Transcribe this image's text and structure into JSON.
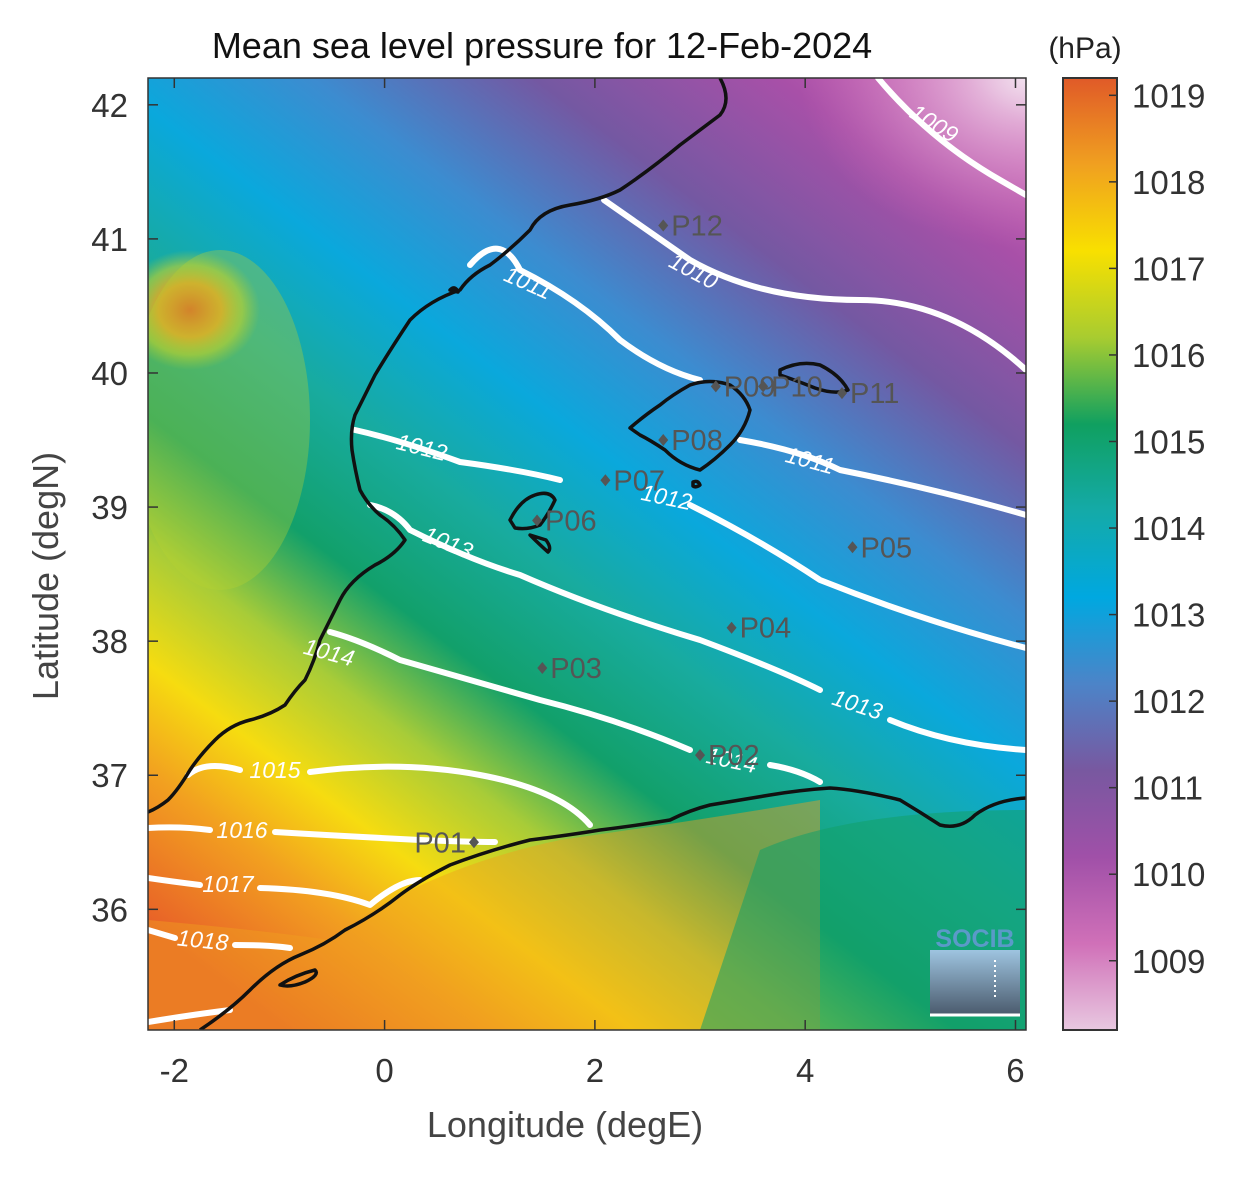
{
  "map": {
    "title": "Mean sea level pressure for 12-Feb-2024",
    "xlabel": "Longitude (degE)",
    "ylabel": "Latitude (degN)",
    "lon_range": [
      -2.25,
      6.1
    ],
    "lat_range": [
      35.1,
      42.2
    ],
    "x_ticks": [
      -2,
      0,
      2,
      4,
      6
    ],
    "y_ticks": [
      42,
      41,
      40,
      39,
      38,
      37,
      36
    ],
    "x_tick_labels": [
      "-2",
      "0",
      "2",
      "4",
      "6"
    ],
    "y_tick_labels": [
      "42",
      "41",
      "40",
      "39",
      "38",
      "37",
      "36"
    ]
  },
  "colorbar": {
    "unit": "(hPa)",
    "range": [
      1008.2,
      1019.2
    ],
    "tick_values": [
      1019,
      1018,
      1017,
      1016,
      1015,
      1014,
      1013,
      1012,
      1011,
      1010,
      1009
    ],
    "tick_labels": [
      "1019",
      "1018",
      "1017",
      "1016",
      "1015",
      "1014",
      "1013",
      "1012",
      "1011",
      "1010",
      "1009"
    ],
    "colors": [
      "#e8c8e0",
      "#d070b8",
      "#a050a8",
      "#7858a0",
      "#4c84c8",
      "#00a8e0",
      "#14aaa8",
      "#10a060",
      "#a8cc30",
      "#f8e000",
      "#f0a020",
      "#e05a28"
    ]
  },
  "contours": [
    {
      "level": 1009,
      "label": "1009"
    },
    {
      "level": 1010,
      "label": "1010"
    },
    {
      "level": 1011,
      "label": "1011"
    },
    {
      "level": 1011,
      "label": "1011"
    },
    {
      "level": 1012,
      "label": "1012"
    },
    {
      "level": 1012,
      "label": "1012"
    },
    {
      "level": 1013,
      "label": "1013"
    },
    {
      "level": 1013,
      "label": "1013"
    },
    {
      "level": 1014,
      "label": "1014"
    },
    {
      "level": 1014,
      "label": "1014"
    },
    {
      "level": 1015,
      "label": "1015"
    },
    {
      "level": 1016,
      "label": "1016"
    },
    {
      "level": 1017,
      "label": "1017"
    },
    {
      "level": 1018,
      "label": "1018"
    }
  ],
  "stations": [
    {
      "id": "P01",
      "lon": 0.85,
      "lat": 36.5
    },
    {
      "id": "P02",
      "lon": 3.0,
      "lat": 37.15
    },
    {
      "id": "P03",
      "lon": 1.5,
      "lat": 37.8
    },
    {
      "id": "P04",
      "lon": 3.3,
      "lat": 38.1
    },
    {
      "id": "P05",
      "lon": 4.45,
      "lat": 38.7
    },
    {
      "id": "P06",
      "lon": 1.45,
      "lat": 38.9
    },
    {
      "id": "P07",
      "lon": 2.1,
      "lat": 39.2
    },
    {
      "id": "P08",
      "lon": 2.65,
      "lat": 39.5
    },
    {
      "id": "P09",
      "lon": 3.15,
      "lat": 39.9
    },
    {
      "id": "P10",
      "lon": 3.6,
      "lat": 39.9
    },
    {
      "id": "P11",
      "lon": 4.35,
      "lat": 39.85
    },
    {
      "id": "P12",
      "lon": 2.65,
      "lat": 41.1
    }
  ],
  "logo": {
    "text": "SOCIB",
    "color": "#5a9ac8"
  }
}
